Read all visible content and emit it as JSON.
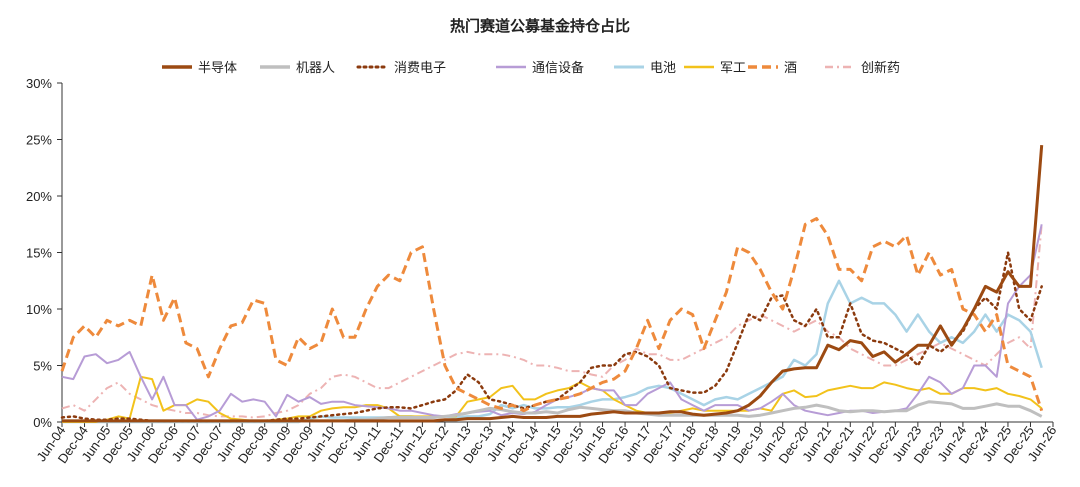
{
  "chart_data": {
    "type": "line",
    "title": "热门赛道公募基金持仓占比",
    "xlabel": "",
    "ylabel": "",
    "ylim": [
      0,
      30
    ],
    "ytick_labels": [
      "0%",
      "5%",
      "10%",
      "15%",
      "20%",
      "25%",
      "30%"
    ],
    "ytick_values": [
      0,
      5,
      10,
      15,
      20,
      25,
      30
    ],
    "x_tick_labels": [
      "Jun-04",
      "Dec-04",
      "Jun-05",
      "Dec-05",
      "Jun-06",
      "Dec-06",
      "Jun-07",
      "Dec-07",
      "Jun-08",
      "Dec-08",
      "Jun-09",
      "Dec-09",
      "Jun-10",
      "Dec-10",
      "Jun-11",
      "Dec-11",
      "Jun-12",
      "Dec-12",
      "Jun-13",
      "Dec-13",
      "Jun-14",
      "Dec-14",
      "Jun-15",
      "Dec-15",
      "Jun-16",
      "Dec-16",
      "Jun-17",
      "Dec-17",
      "Jun-18",
      "Dec-18",
      "Jun-19",
      "Dec-19",
      "Jun-20",
      "Dec-20",
      "Jun-21",
      "Dec-21",
      "Jun-22",
      "Dec-22",
      "Jun-23",
      "Dec-23",
      "Jun-24",
      "Dec-24",
      "Jun-25",
      "Dec-25",
      "Jun-26"
    ],
    "x_quarters": [
      "2004Q2",
      "2004Q3",
      "2004Q4",
      "2005Q1",
      "2005Q2",
      "2005Q3",
      "2005Q4",
      "2006Q1",
      "2006Q2",
      "2006Q3",
      "2006Q4",
      "2007Q1",
      "2007Q2",
      "2007Q3",
      "2007Q4",
      "2008Q1",
      "2008Q2",
      "2008Q3",
      "2008Q4",
      "2009Q1",
      "2009Q2",
      "2009Q3",
      "2009Q4",
      "2010Q1",
      "2010Q2",
      "2010Q3",
      "2010Q4",
      "2011Q1",
      "2011Q2",
      "2011Q3",
      "2011Q4",
      "2012Q1",
      "2012Q2",
      "2012Q3",
      "2012Q4",
      "2013Q1",
      "2013Q2",
      "2013Q3",
      "2013Q4",
      "2014Q1",
      "2014Q2",
      "2014Q3",
      "2014Q4",
      "2015Q1",
      "2015Q2",
      "2015Q3",
      "2015Q4",
      "2016Q1",
      "2016Q2",
      "2016Q3",
      "2016Q4",
      "2017Q1",
      "2017Q2",
      "2017Q3",
      "2017Q4",
      "2018Q1",
      "2018Q2",
      "2018Q3",
      "2018Q4",
      "2019Q1",
      "2019Q2",
      "2019Q3",
      "2019Q4",
      "2020Q1",
      "2020Q2",
      "2020Q3",
      "2020Q4",
      "2021Q1",
      "2021Q2",
      "2021Q3",
      "2021Q4",
      "2022Q1",
      "2022Q2",
      "2022Q3",
      "2022Q4",
      "2023Q1",
      "2023Q2",
      "2023Q3",
      "2023Q4",
      "2024Q1",
      "2024Q2",
      "2024Q3",
      "2024Q4",
      "2025Q1",
      "2025Q2",
      "2025Q3",
      "2025Q4",
      "2026Q1",
      "2026Q2"
    ],
    "legend_position": "top",
    "grid": false,
    "series": [
      {
        "name": "半导体",
        "color": "#9C4A12",
        "style": "solid",
        "width": 3,
        "values": [
          0.1,
          0.1,
          0.1,
          0.1,
          0.1,
          0.1,
          0.1,
          0.1,
          0.1,
          0.1,
          0.1,
          0.1,
          0.1,
          0.1,
          0.1,
          0.1,
          0.1,
          0.1,
          0.1,
          0.1,
          0.1,
          0.1,
          0.1,
          0.1,
          0.1,
          0.1,
          0.1,
          0.1,
          0.1,
          0.1,
          0.1,
          0.1,
          0.1,
          0.1,
          0.2,
          0.2,
          0.3,
          0.3,
          0.3,
          0.4,
          0.5,
          0.4,
          0.4,
          0.4,
          0.5,
          0.5,
          0.5,
          0.7,
          0.8,
          0.9,
          0.8,
          0.8,
          0.8,
          0.8,
          0.9,
          0.9,
          0.7,
          0.6,
          0.7,
          0.8,
          1.0,
          1.5,
          2.3,
          3.5,
          4.5,
          4.7,
          4.8,
          4.8,
          6.8,
          6.4,
          7.2,
          7.0,
          5.8,
          6.2,
          5.3,
          6.0,
          6.8,
          6.8,
          8.5,
          6.8,
          8.2,
          10.0,
          12.0,
          11.5,
          13.3,
          12.0,
          12.0,
          24.5
        ]
      },
      {
        "name": "机器人",
        "color": "#BFBFBF",
        "style": "solid",
        "width": 3,
        "values": [
          0.1,
          0.1,
          0.1,
          0.1,
          0.1,
          0.1,
          0.1,
          0.1,
          0.1,
          0.1,
          0.1,
          0.1,
          0.1,
          0.1,
          0.1,
          0.1,
          0.1,
          0.1,
          0.1,
          0.1,
          0.1,
          0.1,
          0.1,
          0.1,
          0.1,
          0.1,
          0.2,
          0.2,
          0.3,
          0.4,
          0.4,
          0.4,
          0.4,
          0.4,
          0.5,
          0.6,
          0.8,
          1.0,
          1.2,
          1.1,
          0.9,
          0.8,
          0.8,
          0.9,
          0.8,
          1.1,
          1.3,
          1.2,
          1.1,
          1.0,
          1.0,
          0.8,
          0.7,
          0.6,
          0.6,
          0.6,
          0.6,
          0.6,
          0.6,
          0.6,
          0.6,
          0.5,
          0.6,
          0.8,
          1.0,
          1.2,
          1.3,
          1.5,
          1.3,
          1.0,
          0.9,
          1.0,
          1.0,
          0.9,
          1.0,
          1.0,
          1.5,
          1.8,
          1.7,
          1.6,
          1.2,
          1.2,
          1.4,
          1.6,
          1.4,
          1.4,
          1.0,
          0.5
        ]
      },
      {
        "name": "消费电子",
        "color": "#8B3A0E",
        "style": "dotted",
        "width": 2.5,
        "values": [
          0.4,
          0.5,
          0.3,
          0.2,
          0.2,
          0.3,
          0.3,
          0.2,
          0.1,
          0.1,
          0.1,
          0.1,
          0.1,
          0.1,
          0.1,
          0.1,
          0.1,
          0.1,
          0.1,
          0.2,
          0.3,
          0.3,
          0.4,
          0.5,
          0.6,
          0.7,
          0.8,
          1.0,
          1.2,
          1.3,
          1.3,
          1.2,
          1.5,
          1.8,
          2.0,
          2.8,
          4.2,
          3.5,
          2.0,
          1.8,
          1.5,
          1.2,
          1.5,
          1.8,
          2.0,
          2.8,
          3.5,
          4.8,
          5.0,
          5.0,
          6.0,
          6.2,
          5.8,
          5.0,
          3.0,
          2.8,
          2.6,
          2.6,
          3.2,
          4.5,
          7.0,
          9.5,
          9.0,
          11.0,
          11.2,
          9.0,
          8.5,
          10.0,
          7.5,
          7.5,
          10.5,
          7.8,
          7.2,
          7.0,
          6.5,
          6.0,
          5.0,
          6.8,
          6.2,
          7.0,
          8.0,
          10.0,
          11.0,
          10.0,
          15.0,
          10.0,
          9.0,
          12.0
        ]
      },
      {
        "name": "通信设备",
        "color": "#B79CD6",
        "style": "solid",
        "width": 2,
        "values": [
          4.0,
          3.8,
          5.8,
          6.0,
          5.2,
          5.5,
          6.2,
          4.0,
          2.0,
          4.0,
          1.5,
          1.5,
          0.2,
          0.5,
          1.0,
          2.5,
          1.8,
          2.0,
          1.8,
          0.5,
          2.4,
          1.8,
          2.2,
          1.6,
          1.8,
          1.8,
          1.5,
          1.4,
          1.3,
          1.2,
          1.0,
          1.0,
          0.8,
          0.6,
          0.5,
          0.7,
          0.8,
          0.9,
          1.0,
          0.6,
          0.8,
          0.7,
          0.9,
          1.5,
          2.0,
          2.2,
          2.5,
          3.0,
          2.8,
          2.8,
          1.5,
          1.5,
          2.5,
          3.0,
          3.5,
          2.0,
          1.5,
          1.0,
          1.5,
          1.5,
          1.5,
          1.0,
          1.2,
          1.8,
          2.5,
          1.5,
          1.0,
          0.8,
          0.6,
          0.8,
          1.0,
          1.0,
          0.8,
          0.9,
          1.0,
          1.2,
          2.5,
          4.0,
          3.5,
          2.5,
          3.0,
          5.0,
          5.0,
          4.0,
          10.5,
          12.0,
          13.0,
          17.5
        ]
      },
      {
        "name": "电池",
        "color": "#A9D3E6",
        "style": "solid",
        "width": 2.5,
        "values": [
          0.0,
          0.0,
          0.0,
          0.0,
          0.0,
          0.0,
          0.0,
          0.0,
          0.0,
          0.0,
          0.0,
          0.0,
          0.0,
          0.0,
          0.0,
          0.0,
          0.0,
          0.0,
          0.0,
          0.0,
          0.0,
          0.0,
          0.3,
          0.5,
          0.4,
          0.4,
          0.4,
          0.4,
          0.4,
          0.4,
          0.5,
          0.5,
          0.4,
          0.4,
          0.5,
          0.4,
          0.5,
          0.5,
          0.7,
          1.5,
          1.2,
          1.5,
          1.2,
          1.2,
          1.3,
          1.3,
          1.5,
          1.8,
          2.0,
          2.0,
          2.2,
          2.5,
          3.0,
          3.2,
          3.0,
          2.5,
          2.0,
          1.5,
          2.0,
          2.2,
          2.0,
          2.5,
          3.0,
          3.5,
          4.0,
          5.5,
          5.0,
          6.0,
          10.5,
          12.5,
          10.5,
          11.0,
          10.5,
          10.5,
          9.5,
          8.0,
          9.5,
          8.0,
          7.0,
          7.5,
          7.0,
          8.0,
          9.5,
          8.0,
          9.5,
          9.0,
          8.0,
          4.8
        ]
      },
      {
        "name": "军工",
        "color": "#F2C21B",
        "style": "solid",
        "width": 2,
        "values": [
          0.0,
          0.0,
          0.0,
          0.0,
          0.2,
          0.5,
          0.3,
          4.0,
          3.8,
          1.0,
          1.5,
          1.5,
          2.0,
          1.8,
          0.8,
          0.3,
          0.2,
          0.1,
          0.1,
          0.2,
          0.3,
          0.5,
          0.5,
          1.0,
          1.2,
          1.3,
          1.3,
          1.5,
          1.5,
          1.2,
          0.5,
          0.5,
          0.5,
          0.5,
          0.5,
          0.5,
          1.8,
          2.0,
          2.2,
          3.0,
          3.2,
          2.0,
          2.0,
          2.5,
          2.8,
          3.0,
          3.5,
          3.0,
          2.8,
          2.0,
          1.5,
          1.0,
          0.8,
          0.8,
          0.8,
          1.0,
          1.2,
          1.0,
          1.0,
          1.0,
          1.0,
          1.0,
          1.2,
          1.0,
          2.5,
          2.8,
          2.2,
          2.3,
          2.8,
          3.0,
          3.2,
          3.0,
          3.0,
          3.5,
          3.3,
          3.0,
          2.8,
          3.0,
          2.5,
          2.5,
          3.0,
          3.0,
          2.8,
          3.0,
          2.5,
          2.3,
          2.0,
          1.2
        ]
      },
      {
        "name": "酒",
        "color": "#EE8A3C",
        "style": "dashed",
        "width": 3,
        "values": [
          4.5,
          7.5,
          8.5,
          7.5,
          9.0,
          8.5,
          9.0,
          8.5,
          13.0,
          9.0,
          11.0,
          7.0,
          6.5,
          4.0,
          6.5,
          8.5,
          8.8,
          10.8,
          10.5,
          5.5,
          5.0,
          7.5,
          6.5,
          7.0,
          10.0,
          7.5,
          7.5,
          10.0,
          12.0,
          13.0,
          12.5,
          15.0,
          15.5,
          10.0,
          5.0,
          3.0,
          2.5,
          2.0,
          1.5,
          1.2,
          1.5,
          1.0,
          1.5,
          1.8,
          2.0,
          2.2,
          2.5,
          3.0,
          3.5,
          3.8,
          4.5,
          6.5,
          9.0,
          6.5,
          9.0,
          10.0,
          9.5,
          6.5,
          9.0,
          11.5,
          15.5,
          15.0,
          13.5,
          11.5,
          10.0,
          13.5,
          17.5,
          18.0,
          16.5,
          13.5,
          13.5,
          12.5,
          15.5,
          16.0,
          15.5,
          16.5,
          13.0,
          15.0,
          13.0,
          13.5,
          10.0,
          9.5,
          8.0,
          9.5,
          5.0,
          4.5,
          4.0,
          1.0
        ]
      },
      {
        "name": "创新药",
        "color": "#EDB3B3",
        "style": "dashdot",
        "width": 2,
        "values": [
          1.2,
          1.5,
          1.0,
          2.0,
          3.0,
          3.5,
          2.5,
          2.0,
          1.5,
          1.2,
          1.0,
          0.8,
          0.8,
          0.6,
          0.5,
          0.5,
          0.5,
          0.4,
          0.5,
          0.8,
          1.0,
          1.5,
          2.5,
          3.0,
          4.0,
          4.2,
          4.0,
          3.5,
          3.0,
          3.0,
          3.5,
          4.0,
          4.5,
          5.0,
          5.5,
          6.0,
          6.2,
          6.0,
          6.0,
          6.0,
          5.8,
          5.5,
          5.0,
          5.0,
          4.8,
          4.5,
          4.5,
          4.2,
          4.0,
          5.0,
          5.5,
          6.5,
          6.0,
          6.0,
          5.5,
          5.5,
          6.0,
          6.5,
          7.0,
          7.5,
          8.5,
          9.0,
          9.5,
          9.0,
          8.5,
          8.0,
          8.5,
          9.0,
          8.0,
          7.5,
          6.5,
          6.0,
          5.5,
          5.0,
          5.0,
          5.5,
          6.0,
          6.5,
          7.0,
          6.5,
          6.0,
          5.5,
          5.0,
          6.0,
          7.0,
          7.5,
          6.5,
          17.5
        ]
      }
    ]
  }
}
